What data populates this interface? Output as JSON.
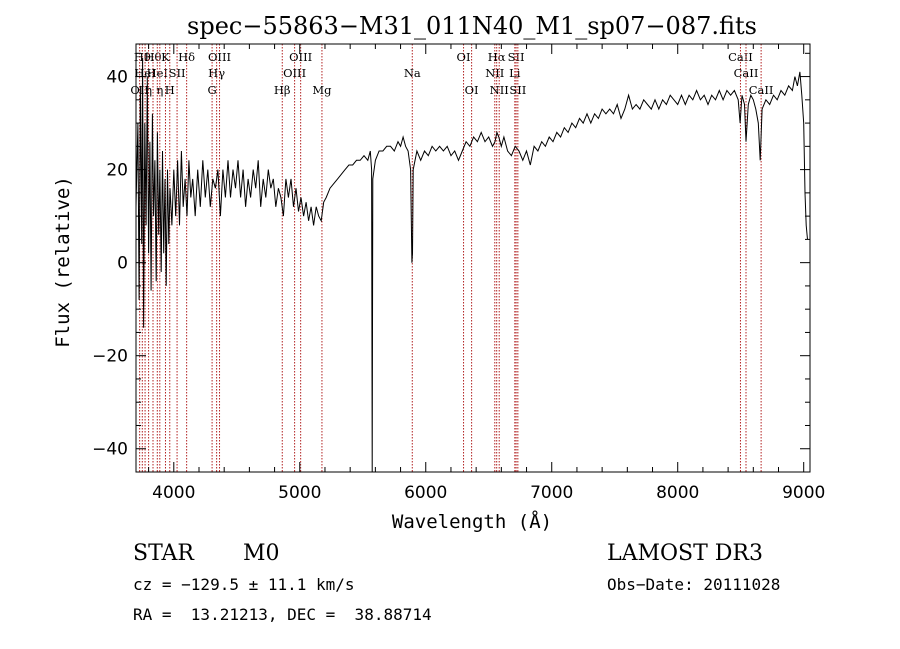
{
  "chart_data": {
    "type": "line",
    "title": "spec−55863−M31_011N40_M1_sp07−087.fits",
    "xlabel": "Wavelength (Å)",
    "ylabel": "Flux (relative)",
    "xlim": [
      3700,
      9050
    ],
    "ylim": [
      -45,
      47
    ],
    "xticks": [
      4000,
      5000,
      6000,
      7000,
      8000,
      9000
    ],
    "yticks": [
      -40,
      -20,
      0,
      20,
      40
    ],
    "ytick_labels": [
      "−40",
      "−20",
      "0",
      "20",
      "40"
    ],
    "line_color": "#000000",
    "marker_color": "#b22222",
    "series": [
      {
        "name": "flux",
        "points": [
          [
            3700,
            12
          ],
          [
            3715,
            30
          ],
          [
            3725,
            -8
          ],
          [
            3735,
            38
          ],
          [
            3745,
            4
          ],
          [
            3752,
            44
          ],
          [
            3760,
            -14
          ],
          [
            3770,
            30
          ],
          [
            3780,
            8
          ],
          [
            3790,
            40
          ],
          [
            3800,
            2
          ],
          [
            3810,
            26
          ],
          [
            3820,
            -6
          ],
          [
            3830,
            32
          ],
          [
            3840,
            10
          ],
          [
            3850,
            22
          ],
          [
            3860,
            -4
          ],
          [
            3870,
            28
          ],
          [
            3880,
            6
          ],
          [
            3890,
            20
          ],
          [
            3900,
            -2
          ],
          [
            3910,
            24
          ],
          [
            3920,
            2
          ],
          [
            3930,
            18
          ],
          [
            3940,
            -5
          ],
          [
            3950,
            20
          ],
          [
            3960,
            4
          ],
          [
            3970,
            16
          ],
          [
            3985,
            8
          ],
          [
            4000,
            20
          ],
          [
            4015,
            10
          ],
          [
            4030,
            22
          ],
          [
            4045,
            8
          ],
          [
            4060,
            24
          ],
          [
            4075,
            12
          ],
          [
            4090,
            18
          ],
          [
            4105,
            10
          ],
          [
            4120,
            22
          ],
          [
            4135,
            14
          ],
          [
            4150,
            18
          ],
          [
            4170,
            10
          ],
          [
            4190,
            20
          ],
          [
            4210,
            12
          ],
          [
            4230,
            22
          ],
          [
            4250,
            14
          ],
          [
            4270,
            20
          ],
          [
            4290,
            12
          ],
          [
            4310,
            18
          ],
          [
            4330,
            16
          ],
          [
            4350,
            20
          ],
          [
            4370,
            10
          ],
          [
            4390,
            20
          ],
          [
            4410,
            14
          ],
          [
            4430,
            22
          ],
          [
            4450,
            14
          ],
          [
            4470,
            20
          ],
          [
            4490,
            16
          ],
          [
            4510,
            22
          ],
          [
            4530,
            14
          ],
          [
            4550,
            20
          ],
          [
            4570,
            12
          ],
          [
            4590,
            18
          ],
          [
            4610,
            14
          ],
          [
            4630,
            20
          ],
          [
            4650,
            16
          ],
          [
            4670,
            22
          ],
          [
            4690,
            12
          ],
          [
            4710,
            18
          ],
          [
            4730,
            14
          ],
          [
            4750,
            20
          ],
          [
            4770,
            16
          ],
          [
            4790,
            18
          ],
          [
            4810,
            12
          ],
          [
            4830,
            16
          ],
          [
            4850,
            14
          ],
          [
            4870,
            10
          ],
          [
            4890,
            18
          ],
          [
            4910,
            14
          ],
          [
            4930,
            18
          ],
          [
            4950,
            12
          ],
          [
            4970,
            16
          ],
          [
            4990,
            11
          ],
          [
            5010,
            14
          ],
          [
            5030,
            10
          ],
          [
            5050,
            13
          ],
          [
            5070,
            9
          ],
          [
            5090,
            12
          ],
          [
            5110,
            8
          ],
          [
            5130,
            12
          ],
          [
            5150,
            10
          ],
          [
            5170,
            9
          ],
          [
            5190,
            13
          ],
          [
            5210,
            14
          ],
          [
            5240,
            16
          ],
          [
            5270,
            17
          ],
          [
            5300,
            18
          ],
          [
            5330,
            19
          ],
          [
            5360,
            20
          ],
          [
            5390,
            21
          ],
          [
            5420,
            21
          ],
          [
            5450,
            22
          ],
          [
            5480,
            22
          ],
          [
            5510,
            23
          ],
          [
            5540,
            22
          ],
          [
            5560,
            24
          ],
          [
            5570,
            20
          ],
          [
            5575,
            -46
          ],
          [
            5580,
            18
          ],
          [
            5600,
            22
          ],
          [
            5630,
            24
          ],
          [
            5660,
            24
          ],
          [
            5690,
            25
          ],
          [
            5720,
            25
          ],
          [
            5750,
            24
          ],
          [
            5780,
            26
          ],
          [
            5800,
            25
          ],
          [
            5820,
            27
          ],
          [
            5840,
            25
          ],
          [
            5860,
            24
          ],
          [
            5880,
            20
          ],
          [
            5890,
            0
          ],
          [
            5895,
            2
          ],
          [
            5900,
            20
          ],
          [
            5930,
            24
          ],
          [
            5960,
            22
          ],
          [
            5990,
            24
          ],
          [
            6020,
            23
          ],
          [
            6050,
            25
          ],
          [
            6080,
            24
          ],
          [
            6110,
            25
          ],
          [
            6140,
            24
          ],
          [
            6170,
            25
          ],
          [
            6200,
            23
          ],
          [
            6230,
            24
          ],
          [
            6260,
            22
          ],
          [
            6290,
            24
          ],
          [
            6320,
            26
          ],
          [
            6350,
            25
          ],
          [
            6380,
            27
          ],
          [
            6410,
            26
          ],
          [
            6440,
            28
          ],
          [
            6470,
            26
          ],
          [
            6500,
            27
          ],
          [
            6530,
            25
          ],
          [
            6550,
            26
          ],
          [
            6565,
            28
          ],
          [
            6580,
            27
          ],
          [
            6600,
            25
          ],
          [
            6620,
            27
          ],
          [
            6650,
            24
          ],
          [
            6680,
            23
          ],
          [
            6710,
            25
          ],
          [
            6740,
            24
          ],
          [
            6770,
            22
          ],
          [
            6800,
            24
          ],
          [
            6830,
            21
          ],
          [
            6860,
            25
          ],
          [
            6890,
            24
          ],
          [
            6920,
            26
          ],
          [
            6950,
            25
          ],
          [
            6980,
            27
          ],
          [
            7010,
            26
          ],
          [
            7040,
            28
          ],
          [
            7070,
            27
          ],
          [
            7100,
            29
          ],
          [
            7130,
            28
          ],
          [
            7160,
            30
          ],
          [
            7190,
            29
          ],
          [
            7220,
            31
          ],
          [
            7250,
            30
          ],
          [
            7280,
            32
          ],
          [
            7310,
            30
          ],
          [
            7340,
            32
          ],
          [
            7370,
            31
          ],
          [
            7400,
            33
          ],
          [
            7430,
            32
          ],
          [
            7460,
            33
          ],
          [
            7490,
            32
          ],
          [
            7520,
            34
          ],
          [
            7550,
            31
          ],
          [
            7580,
            33
          ],
          [
            7610,
            36
          ],
          [
            7640,
            33
          ],
          [
            7670,
            34
          ],
          [
            7700,
            33
          ],
          [
            7730,
            35
          ],
          [
            7760,
            34
          ],
          [
            7790,
            33
          ],
          [
            7820,
            35
          ],
          [
            7850,
            33
          ],
          [
            7880,
            35
          ],
          [
            7910,
            34
          ],
          [
            7940,
            36
          ],
          [
            7970,
            35
          ],
          [
            8000,
            34
          ],
          [
            8030,
            36
          ],
          [
            8060,
            34
          ],
          [
            8090,
            36
          ],
          [
            8120,
            35
          ],
          [
            8150,
            37
          ],
          [
            8180,
            35
          ],
          [
            8210,
            36
          ],
          [
            8240,
            34
          ],
          [
            8270,
            36
          ],
          [
            8300,
            35
          ],
          [
            8330,
            37
          ],
          [
            8360,
            35
          ],
          [
            8390,
            37
          ],
          [
            8420,
            36
          ],
          [
            8450,
            37
          ],
          [
            8480,
            35
          ],
          [
            8495,
            30
          ],
          [
            8510,
            36
          ],
          [
            8530,
            34
          ],
          [
            8542,
            26
          ],
          [
            8560,
            34
          ],
          [
            8580,
            36
          ],
          [
            8600,
            35
          ],
          [
            8620,
            33
          ],
          [
            8640,
            30
          ],
          [
            8655,
            22
          ],
          [
            8670,
            33
          ],
          [
            8700,
            35
          ],
          [
            8730,
            34
          ],
          [
            8760,
            36
          ],
          [
            8790,
            35
          ],
          [
            8820,
            37
          ],
          [
            8850,
            36
          ],
          [
            8880,
            38
          ],
          [
            8910,
            37
          ],
          [
            8930,
            40
          ],
          [
            8950,
            38
          ],
          [
            8970,
            41
          ],
          [
            8985,
            36
          ],
          [
            9000,
            30
          ],
          [
            9010,
            15
          ],
          [
            9020,
            8
          ],
          [
            9030,
            5
          ]
        ]
      }
    ],
    "spectral_lines": [
      {
        "x": 3729,
        "label": "OII",
        "row": 3
      },
      {
        "x": 3750,
        "label": "Hθ",
        "row": 1
      },
      {
        "x": 3772,
        "label": "HeI",
        "row": 2
      },
      {
        "x": 3800,
        "label": "η",
        "row": 3
      },
      {
        "x": 3835,
        "label": "Hθ",
        "row": 1
      },
      {
        "x": 3869,
        "label": "HeI",
        "row": 2
      },
      {
        "x": 3889,
        "label": "η",
        "row": 3
      },
      {
        "x": 3934,
        "label": "K",
        "row": 1
      },
      {
        "x": 3968,
        "label": "H",
        "row": 3
      },
      {
        "x": 4026,
        "label": "SII",
        "row": 2
      },
      {
        "x": 4102,
        "label": "Hδ",
        "row": 1
      },
      {
        "x": 4304,
        "label": "G",
        "row": 3
      },
      {
        "x": 4340,
        "label": "Hγ",
        "row": 2
      },
      {
        "x": 4363,
        "label": "OIII",
        "row": 1
      },
      {
        "x": 4861,
        "label": "Hβ",
        "row": 3
      },
      {
        "x": 4959,
        "label": "OIII",
        "row": 2
      },
      {
        "x": 5007,
        "label": "OIII",
        "row": 1
      },
      {
        "x": 5176,
        "label": "Mg",
        "row": 3
      },
      {
        "x": 5893,
        "label": "Na",
        "row": 2
      },
      {
        "x": 6300,
        "label": "OI",
        "row": 1
      },
      {
        "x": 6364,
        "label": "OI",
        "row": 3
      },
      {
        "x": 6548,
        "label": "NII",
        "row": 2
      },
      {
        "x": 6563,
        "label": "Hα",
        "row": 1
      },
      {
        "x": 6583,
        "label": "NII",
        "row": 3
      },
      {
        "x": 6707,
        "label": "Li",
        "row": 2
      },
      {
        "x": 6717,
        "label": "SII",
        "row": 1
      },
      {
        "x": 6731,
        "label": "SII",
        "row": 3
      },
      {
        "x": 8498,
        "label": "CaII",
        "row": 1
      },
      {
        "x": 8542,
        "label": "CaII",
        "row": 2
      },
      {
        "x": 8662,
        "label": "CaII",
        "row": 3
      }
    ]
  },
  "info": {
    "class": "STAR",
    "subclass": "M0",
    "survey": "LAMOST DR3",
    "redshift": "cz = −129.5 ± 11.1 km/s",
    "obs_date": "Obs−Date: 20111028",
    "coords": "RA =  13.21213, DEC =  38.88714"
  }
}
